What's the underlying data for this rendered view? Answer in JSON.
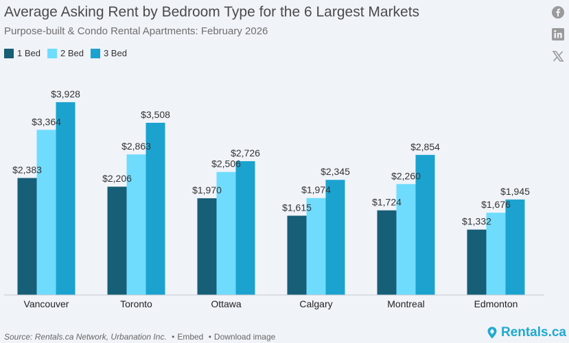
{
  "title": "Average Asking Rent by Bedroom Type for the 6 Largest Markets",
  "subtitle": "Purpose-built & Condo Rental Apartments: February 2026",
  "legend": [
    {
      "label": "1 Bed",
      "color": "#175e77"
    },
    {
      "label": "2 Bed",
      "color": "#6fdcfd"
    },
    {
      "label": "3 Bed",
      "color": "#1ca2cf"
    }
  ],
  "social": [
    "facebook-icon",
    "linkedin-icon",
    "x-icon"
  ],
  "footer": {
    "source": "Source: Rentals.ca Network, Urbanation Inc.",
    "embed": "Embed",
    "download": "Download image",
    "brand": "Rentals.ca"
  },
  "chart_data": {
    "type": "bar",
    "categories": [
      "Vancouver",
      "Toronto",
      "Ottawa",
      "Calgary",
      "Montreal",
      "Edmonton"
    ],
    "series": [
      {
        "name": "1 Bed",
        "values": [
          2383,
          2206,
          1970,
          1615,
          1724,
          1332
        ],
        "labels": [
          "$2,383",
          "$2,206",
          "$1,970",
          "$1,615",
          "$1,724",
          "$1,332"
        ]
      },
      {
        "name": "2 Bed",
        "values": [
          3364,
          2863,
          2506,
          1974,
          2260,
          1676
        ],
        "labels": [
          "$3,364",
          "$2,863",
          "$2,506",
          "$1,974",
          "$2,260",
          "$1,676"
        ]
      },
      {
        "name": "3 Bed",
        "values": [
          3928,
          3508,
          2726,
          2345,
          2854,
          1945
        ],
        "labels": [
          "$3,928",
          "$3,508",
          "$2,726",
          "$2,345",
          "$2,854",
          "$1,945"
        ]
      }
    ],
    "ylim": [
      0,
      4500
    ],
    "grid": false,
    "legend_position": "top-left"
  }
}
